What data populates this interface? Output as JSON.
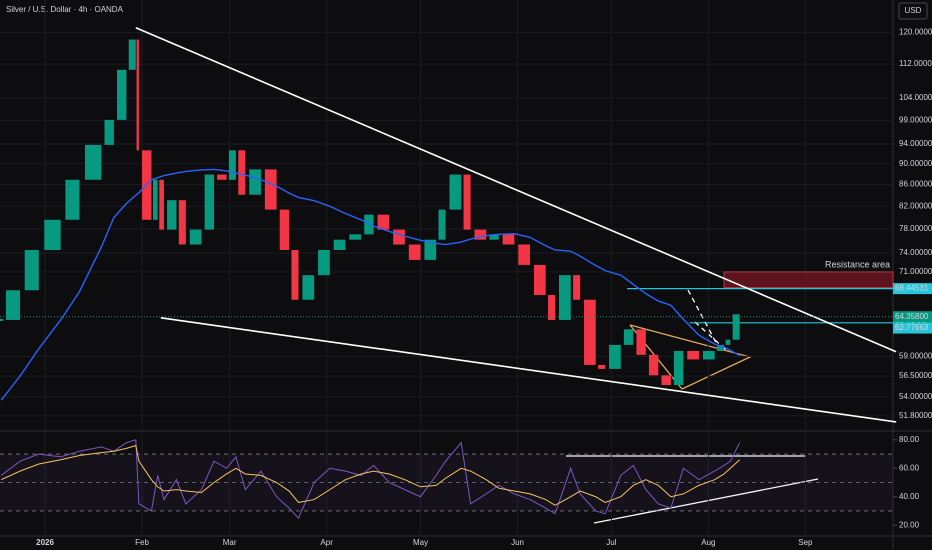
{
  "chart_data": [
    {
      "type": "candlestick",
      "title": "Silver / U.S. Dollar · 4h · OANDA",
      "currency": "USD",
      "log_scale": true,
      "grid": true,
      "x": [
        -14,
        -8,
        -2,
        5,
        11,
        18,
        22,
        26,
        29,
        30,
        34,
        36,
        38,
        42,
        45,
        50,
        54,
        58,
        61,
        64,
        69,
        74,
        78,
        81,
        86,
        91,
        96,
        101,
        105,
        110,
        115,
        120,
        125,
        128,
        133,
        136,
        141,
        145,
        150,
        155,
        160,
        163,
        168,
        171,
        176,
        179,
        184,
        188,
        192,
        196,
        200,
        204,
        209,
        214,
        217,
        219,
        222
      ],
      "series": [
        {
          "up_color": "#089981",
          "down_color": "#f23645",
          "values": [
            63.9,
            68.2,
            74.5,
            79.6,
            86.9,
            93.8,
            99.1,
            110.6,
            118.2,
            92.7,
            79.6,
            86.9,
            77.9,
            83.1,
            75.4,
            77.9,
            87.9,
            86.9,
            92.7,
            84.1,
            88.9,
            81.4,
            74.5,
            66.8,
            70.5,
            74.5,
            76.2,
            77.1,
            80.5,
            77.9,
            75.4,
            72.9,
            76.2,
            81.4,
            87.9,
            77.9,
            76.2,
            77.1,
            75.4,
            72.1,
            67.5,
            63.9,
            70.5,
            66.8,
            57.9,
            57.4,
            60.5,
            62.6,
            59.2,
            56.6,
            55.4,
            59.7,
            58.6,
            59.7,
            60.5,
            61.2,
            64.7
          ]
        },
        {
          "color": "#2962ff",
          "values": [
            53.6,
            56.5,
            60,
            63.9,
            68,
            75,
            80,
            82.5,
            84,
            84.5,
            86.9,
            87.3,
            87.7,
            88.2,
            88.5,
            88.8,
            88.9,
            88.6,
            88.2,
            87.8,
            86.9,
            85.7,
            84.4,
            83.6,
            83.0,
            82.0,
            80.7,
            79.6,
            78.5,
            77.6,
            76.8,
            76.1,
            75.6,
            75.4,
            75.8,
            76.3,
            76.9,
            77.1,
            77.2,
            76.6,
            75.2,
            74.5,
            74.3,
            73.5,
            72.0,
            71.2,
            70.5,
            69.1,
            67.7,
            66.6,
            66.0,
            64.0,
            61.8,
            60.6,
            60.2,
            59.8,
            59.1
          ]
        }
      ],
      "xlim": [
        -14.4,
        271
      ],
      "xticks": [
        {
          "value": 0,
          "label": "2026"
        },
        {
          "value": 31,
          "label": "Feb"
        },
        {
          "value": 59,
          "label": "Mar"
        },
        {
          "value": 90,
          "label": "Apr"
        },
        {
          "value": 120,
          "label": "May"
        },
        {
          "value": 151,
          "label": "Jun"
        },
        {
          "value": 181,
          "label": "Jul"
        },
        {
          "value": 212,
          "label": "Aug"
        },
        {
          "value": 243,
          "label": "Sep"
        }
      ],
      "ylim": [
        50.2,
        128.9
      ],
      "yticks": [
        {
          "value": 120,
          "label": "120.00000"
        },
        {
          "value": 112,
          "label": "112.00000"
        },
        {
          "value": 104,
          "label": "104.00000"
        },
        {
          "value": 99,
          "label": "99.00000"
        },
        {
          "value": 94,
          "label": "94.00000"
        },
        {
          "value": 90,
          "label": "90.00000"
        },
        {
          "value": 86,
          "label": "86.00000"
        },
        {
          "value": 82,
          "label": "82.00000"
        },
        {
          "value": 78,
          "label": "78.00000"
        },
        {
          "value": 74,
          "label": "74.00000"
        },
        {
          "value": 71,
          "label": "71.00000"
        },
        {
          "value": 59,
          "label": "59.00000"
        },
        {
          "value": 56.5,
          "label": "56.50000"
        },
        {
          "value": 54,
          "label": "54.00000"
        },
        {
          "value": 51.8,
          "label": "51.80000"
        }
      ],
      "price_labels": [
        {
          "value": 68.44531,
          "label": "68.44531",
          "color": "#26c6da"
        },
        {
          "value": 64.358,
          "label": "64.35800",
          "sublabel": "02:46:16",
          "color": "#089981"
        },
        {
          "value": 62.77663,
          "label": "62.77663",
          "color": "#26c6da"
        }
      ],
      "trendlines": [
        {
          "x": [
            29,
            272
          ],
          "y": [
            121.3,
            59.6
          ]
        },
        {
          "x": [
            37,
            272
          ],
          "y": [
            64.2,
            51.1
          ]
        }
      ],
      "rays": [
        {
          "x": 186,
          "y": 68.44531,
          "color": "#26c6da"
        },
        {
          "x": 206,
          "y": 63.5,
          "color": "#26c6da"
        }
      ],
      "zone": {
        "label": "Resistance area",
        "x": [
          217,
          272
        ],
        "y": [
          68.6,
          71.0
        ],
        "color": "#6b1520"
      }
    },
    {
      "type": "line",
      "x": [
        -14,
        -8,
        -2,
        5,
        11,
        18,
        22,
        26,
        29,
        30,
        34,
        36,
        38,
        42,
        45,
        50,
        54,
        58,
        61,
        64,
        69,
        74,
        78,
        81,
        86,
        91,
        96,
        101,
        105,
        110,
        115,
        120,
        125,
        128,
        133,
        136,
        141,
        145,
        150,
        155,
        160,
        163,
        168,
        171,
        176,
        179,
        184,
        188,
        192,
        196,
        200,
        204,
        209,
        214,
        217,
        219,
        222
      ],
      "series": [
        {
          "color": "#7e57c2",
          "values": [
            55,
            65,
            70,
            68,
            72,
            75,
            72,
            78,
            80,
            35,
            30,
            55,
            38,
            52,
            35,
            45,
            65,
            60,
            68,
            45,
            58,
            40,
            32,
            25,
            50,
            60,
            58,
            55,
            62,
            50,
            45,
            40,
            55,
            65,
            78,
            35,
            42,
            48,
            42,
            38,
            32,
            28,
            60,
            42,
            30,
            28,
            55,
            62,
            45,
            35,
            32,
            60,
            52,
            58,
            62,
            65,
            78
          ]
        },
        {
          "color": "#f7c35f",
          "values": [
            52,
            58,
            63,
            66,
            69,
            71,
            72,
            74,
            76,
            65,
            52,
            47,
            44,
            45,
            44,
            43,
            50,
            56,
            60,
            56,
            55,
            50,
            44,
            36,
            38,
            45,
            52,
            56,
            58,
            56,
            52,
            47,
            48,
            53,
            60,
            58,
            52,
            46,
            44,
            42,
            38,
            34,
            40,
            44,
            40,
            36,
            40,
            48,
            52,
            48,
            40,
            42,
            48,
            52,
            56,
            60,
            66
          ]
        }
      ],
      "xlim": [
        -14.4,
        271
      ],
      "ylim": [
        13.1,
        85.5
      ],
      "yticks": [
        {
          "value": 80,
          "label": "80.00"
        },
        {
          "value": 60,
          "label": "60.00"
        },
        {
          "value": 40,
          "label": "40.00"
        },
        {
          "value": 20,
          "label": "20.00"
        }
      ],
      "bands": [
        30,
        50,
        70
      ]
    }
  ]
}
